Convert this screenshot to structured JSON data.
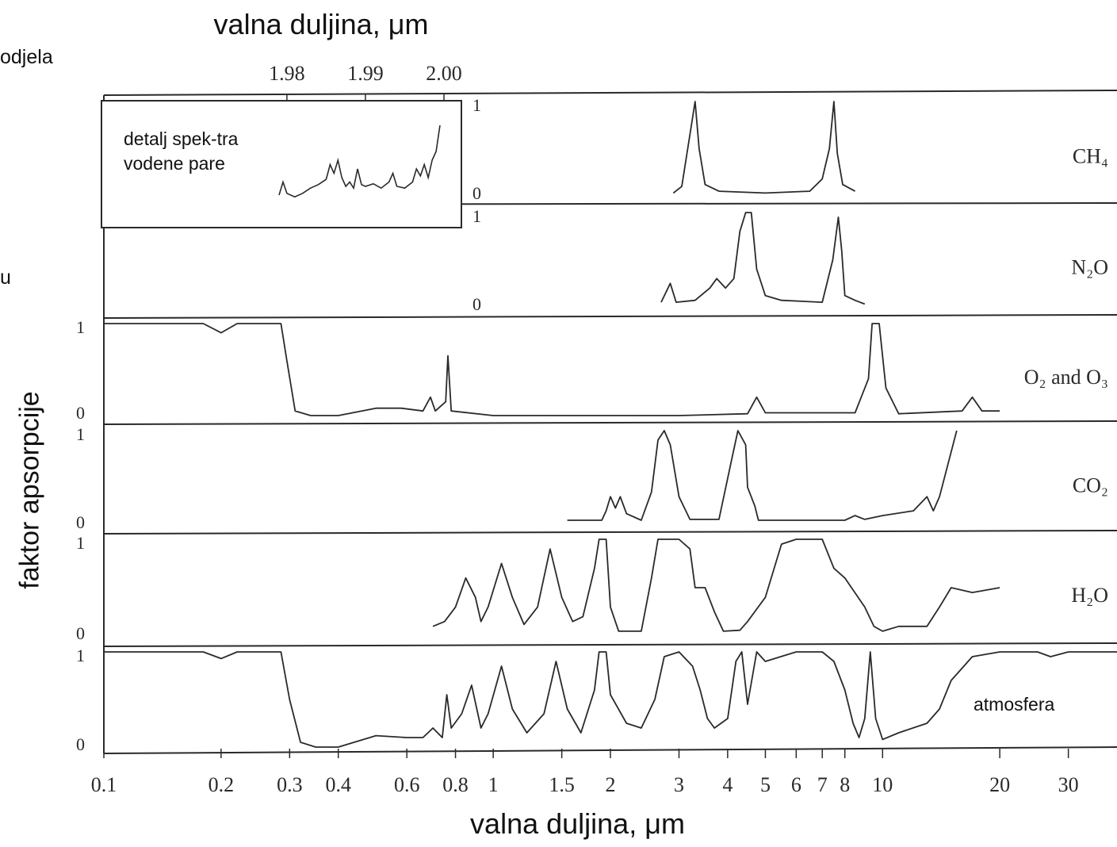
{
  "labels": {
    "top_axis_title": "valna duljina, μm",
    "bottom_axis_title": "valna duljina, μm",
    "y_axis_title": "faktor apsorpcije",
    "left_fragment_1": "odjela",
    "left_fragment_2": "u",
    "inset_text": "detalj spek-tra vodene pare",
    "atmosphere_label": "atmosfera"
  },
  "chart_data": {
    "type": "line",
    "x_scale": "log",
    "xlim": [
      0.1,
      40
    ],
    "x_ticks": [
      "0.1",
      "0.2",
      "0.3",
      "0.4",
      "0.6",
      "0.8",
      "1",
      "1.5",
      "2",
      "3",
      "4",
      "5",
      "6",
      "7",
      "8",
      "10",
      "20",
      "30"
    ],
    "x_tick_values": [
      0.1,
      0.2,
      0.3,
      0.4,
      0.6,
      0.8,
      1,
      1.5,
      2,
      3,
      4,
      5,
      6,
      7,
      8,
      10,
      20,
      30
    ],
    "top_ticks": [
      "1.98",
      "1.99",
      "2.00"
    ],
    "ylim": [
      0,
      1
    ],
    "panels": [
      {
        "name": "CH₄",
        "y_ticks": [
          "1",
          "0"
        ],
        "points": [
          [
            2.9,
            0.03
          ],
          [
            3.05,
            0.1
          ],
          [
            3.2,
            0.65
          ],
          [
            3.3,
            1.0
          ],
          [
            3.38,
            0.5
          ],
          [
            3.5,
            0.12
          ],
          [
            3.8,
            0.05
          ],
          [
            5.0,
            0.03
          ],
          [
            6.5,
            0.05
          ],
          [
            7.0,
            0.18
          ],
          [
            7.3,
            0.5
          ],
          [
            7.5,
            1.0
          ],
          [
            7.65,
            0.45
          ],
          [
            7.9,
            0.12
          ],
          [
            8.5,
            0.05
          ]
        ]
      },
      {
        "name": "N₂O",
        "y_ticks": [
          "1",
          "0"
        ],
        "points": [
          [
            2.7,
            0.05
          ],
          [
            2.85,
            0.25
          ],
          [
            2.95,
            0.05
          ],
          [
            3.3,
            0.07
          ],
          [
            3.6,
            0.2
          ],
          [
            3.75,
            0.3
          ],
          [
            3.95,
            0.2
          ],
          [
            4.15,
            0.3
          ],
          [
            4.3,
            0.8
          ],
          [
            4.45,
            1.0
          ],
          [
            4.6,
            1.0
          ],
          [
            4.75,
            0.4
          ],
          [
            5.0,
            0.12
          ],
          [
            5.5,
            0.07
          ],
          [
            7.0,
            0.05
          ],
          [
            7.45,
            0.5
          ],
          [
            7.7,
            0.95
          ],
          [
            7.85,
            0.6
          ],
          [
            8.0,
            0.12
          ],
          [
            8.5,
            0.07
          ],
          [
            9.0,
            0.03
          ]
        ]
      },
      {
        "name": "O₂ and O₃",
        "y_ticks": [
          "1",
          "0"
        ],
        "points": [
          [
            0.1,
            1.0
          ],
          [
            0.18,
            1.0
          ],
          [
            0.2,
            0.9
          ],
          [
            0.22,
            1.0
          ],
          [
            0.285,
            1.0
          ],
          [
            0.295,
            0.6
          ],
          [
            0.31,
            0.05
          ],
          [
            0.34,
            0.0
          ],
          [
            0.4,
            0.0
          ],
          [
            0.5,
            0.08
          ],
          [
            0.58,
            0.08
          ],
          [
            0.66,
            0.05
          ],
          [
            0.69,
            0.2
          ],
          [
            0.71,
            0.05
          ],
          [
            0.755,
            0.15
          ],
          [
            0.765,
            0.65
          ],
          [
            0.78,
            0.05
          ],
          [
            1.0,
            0.0
          ],
          [
            3.0,
            0.0
          ],
          [
            4.5,
            0.02
          ],
          [
            4.75,
            0.2
          ],
          [
            5.0,
            0.03
          ],
          [
            8.5,
            0.03
          ],
          [
            9.2,
            0.4
          ],
          [
            9.4,
            1.0
          ],
          [
            9.8,
            1.0
          ],
          [
            10.2,
            0.3
          ],
          [
            11.0,
            0.02
          ],
          [
            16.0,
            0.05
          ],
          [
            17.0,
            0.2
          ],
          [
            18.0,
            0.05
          ],
          [
            20.0,
            0.05
          ]
        ]
      },
      {
        "name": "CO₂",
        "y_ticks": [
          "1",
          "0"
        ],
        "points": [
          [
            1.55,
            0.05
          ],
          [
            1.9,
            0.05
          ],
          [
            1.95,
            0.15
          ],
          [
            2.0,
            0.3
          ],
          [
            2.06,
            0.18
          ],
          [
            2.12,
            0.3
          ],
          [
            2.2,
            0.12
          ],
          [
            2.4,
            0.05
          ],
          [
            2.55,
            0.35
          ],
          [
            2.65,
            0.9
          ],
          [
            2.75,
            1.0
          ],
          [
            2.85,
            0.85
          ],
          [
            3.0,
            0.3
          ],
          [
            3.2,
            0.06
          ],
          [
            3.8,
            0.06
          ],
          [
            4.1,
            0.7
          ],
          [
            4.25,
            1.0
          ],
          [
            4.45,
            0.85
          ],
          [
            4.5,
            0.4
          ],
          [
            4.7,
            0.2
          ],
          [
            4.8,
            0.05
          ],
          [
            6.0,
            0.05
          ],
          [
            8.0,
            0.05
          ],
          [
            8.5,
            0.1
          ],
          [
            9.0,
            0.06
          ],
          [
            10.0,
            0.1
          ],
          [
            12.0,
            0.15
          ],
          [
            13.0,
            0.3
          ],
          [
            13.5,
            0.15
          ],
          [
            14.0,
            0.3
          ],
          [
            15.5,
            1.0
          ]
        ]
      },
      {
        "name": "H₂O",
        "y_ticks": [
          "1",
          "0"
        ],
        "points": [
          [
            0.7,
            0.1
          ],
          [
            0.75,
            0.15
          ],
          [
            0.8,
            0.3
          ],
          [
            0.85,
            0.6
          ],
          [
            0.9,
            0.4
          ],
          [
            0.93,
            0.15
          ],
          [
            0.97,
            0.3
          ],
          [
            1.05,
            0.75
          ],
          [
            1.12,
            0.4
          ],
          [
            1.2,
            0.12
          ],
          [
            1.3,
            0.3
          ],
          [
            1.4,
            0.9
          ],
          [
            1.5,
            0.4
          ],
          [
            1.6,
            0.15
          ],
          [
            1.7,
            0.2
          ],
          [
            1.82,
            0.7
          ],
          [
            1.87,
            1.0
          ],
          [
            1.95,
            1.0
          ],
          [
            2.0,
            0.3
          ],
          [
            2.1,
            0.05
          ],
          [
            2.4,
            0.05
          ],
          [
            2.55,
            0.6
          ],
          [
            2.65,
            1.0
          ],
          [
            3.0,
            1.0
          ],
          [
            3.2,
            0.9
          ],
          [
            3.3,
            0.5
          ],
          [
            3.5,
            0.5
          ],
          [
            3.7,
            0.25
          ],
          [
            3.9,
            0.05
          ],
          [
            4.3,
            0.06
          ],
          [
            4.5,
            0.15
          ],
          [
            5.0,
            0.4
          ],
          [
            5.5,
            0.95
          ],
          [
            6.0,
            1.0
          ],
          [
            7.0,
            1.0
          ],
          [
            7.5,
            0.7
          ],
          [
            8.0,
            0.6
          ],
          [
            9.0,
            0.3
          ],
          [
            9.5,
            0.1
          ],
          [
            10.0,
            0.05
          ],
          [
            11.0,
            0.1
          ],
          [
            13.0,
            0.1
          ],
          [
            14.0,
            0.3
          ],
          [
            15.0,
            0.5
          ],
          [
            17.0,
            0.45
          ],
          [
            20.0,
            0.5
          ]
        ]
      },
      {
        "name": "atmosfera",
        "y_ticks": [
          "1",
          "0"
        ],
        "points": [
          [
            0.1,
            1.0
          ],
          [
            0.18,
            1.0
          ],
          [
            0.2,
            0.93
          ],
          [
            0.22,
            1.0
          ],
          [
            0.285,
            1.0
          ],
          [
            0.3,
            0.5
          ],
          [
            0.32,
            0.05
          ],
          [
            0.35,
            0.0
          ],
          [
            0.4,
            0.0
          ],
          [
            0.5,
            0.12
          ],
          [
            0.6,
            0.1
          ],
          [
            0.66,
            0.1
          ],
          [
            0.7,
            0.2
          ],
          [
            0.74,
            0.1
          ],
          [
            0.76,
            0.55
          ],
          [
            0.78,
            0.2
          ],
          [
            0.83,
            0.35
          ],
          [
            0.88,
            0.65
          ],
          [
            0.93,
            0.2
          ],
          [
            0.97,
            0.35
          ],
          [
            1.05,
            0.85
          ],
          [
            1.12,
            0.4
          ],
          [
            1.22,
            0.15
          ],
          [
            1.35,
            0.35
          ],
          [
            1.45,
            0.9
          ],
          [
            1.55,
            0.4
          ],
          [
            1.68,
            0.15
          ],
          [
            1.82,
            0.6
          ],
          [
            1.87,
            1.0
          ],
          [
            1.95,
            1.0
          ],
          [
            2.0,
            0.55
          ],
          [
            2.2,
            0.25
          ],
          [
            2.4,
            0.2
          ],
          [
            2.6,
            0.5
          ],
          [
            2.75,
            0.95
          ],
          [
            3.0,
            1.0
          ],
          [
            3.25,
            0.85
          ],
          [
            3.4,
            0.6
          ],
          [
            3.55,
            0.3
          ],
          [
            3.7,
            0.2
          ],
          [
            4.0,
            0.3
          ],
          [
            4.2,
            0.9
          ],
          [
            4.35,
            1.0
          ],
          [
            4.5,
            0.45
          ],
          [
            4.75,
            1.0
          ],
          [
            5.0,
            0.9
          ],
          [
            6.0,
            1.0
          ],
          [
            7.0,
            1.0
          ],
          [
            7.5,
            0.9
          ],
          [
            8.0,
            0.6
          ],
          [
            8.4,
            0.25
          ],
          [
            8.7,
            0.1
          ],
          [
            9.0,
            0.3
          ],
          [
            9.3,
            1.0
          ],
          [
            9.6,
            0.3
          ],
          [
            10.0,
            0.08
          ],
          [
            11.0,
            0.15
          ],
          [
            13.0,
            0.25
          ],
          [
            14.0,
            0.4
          ],
          [
            15.0,
            0.7
          ],
          [
            17.0,
            0.95
          ],
          [
            20.0,
            1.0
          ],
          [
            25.0,
            1.0
          ],
          [
            27.0,
            0.95
          ],
          [
            30.0,
            1.0
          ],
          [
            40.0,
            1.0
          ]
        ]
      }
    ],
    "inset": {
      "x_ticks": [
        "1.98",
        "1.99",
        "2.00"
      ],
      "x_tick_values": [
        1.98,
        1.99,
        2.0
      ],
      "xlim": [
        1.979,
        2.0
      ],
      "points": [
        [
          1.979,
          0.2
        ],
        [
          1.9795,
          0.35
        ],
        [
          1.98,
          0.22
        ],
        [
          1.981,
          0.18
        ],
        [
          1.982,
          0.22
        ],
        [
          1.983,
          0.28
        ],
        [
          1.984,
          0.32
        ],
        [
          1.985,
          0.38
        ],
        [
          1.9855,
          0.55
        ],
        [
          1.986,
          0.45
        ],
        [
          1.9865,
          0.6
        ],
        [
          1.987,
          0.4
        ],
        [
          1.9875,
          0.3
        ],
        [
          1.988,
          0.35
        ],
        [
          1.9885,
          0.28
        ],
        [
          1.989,
          0.5
        ],
        [
          1.9895,
          0.32
        ],
        [
          1.99,
          0.3
        ],
        [
          1.991,
          0.33
        ],
        [
          1.992,
          0.28
        ],
        [
          1.993,
          0.35
        ],
        [
          1.9935,
          0.45
        ],
        [
          1.994,
          0.3
        ],
        [
          1.995,
          0.28
        ],
        [
          1.996,
          0.35
        ],
        [
          1.9965,
          0.5
        ],
        [
          1.997,
          0.42
        ],
        [
          1.9975,
          0.55
        ],
        [
          1.998,
          0.4
        ],
        [
          1.9985,
          0.6
        ],
        [
          1.999,
          0.7
        ],
        [
          1.9995,
          1.0
        ]
      ]
    }
  }
}
